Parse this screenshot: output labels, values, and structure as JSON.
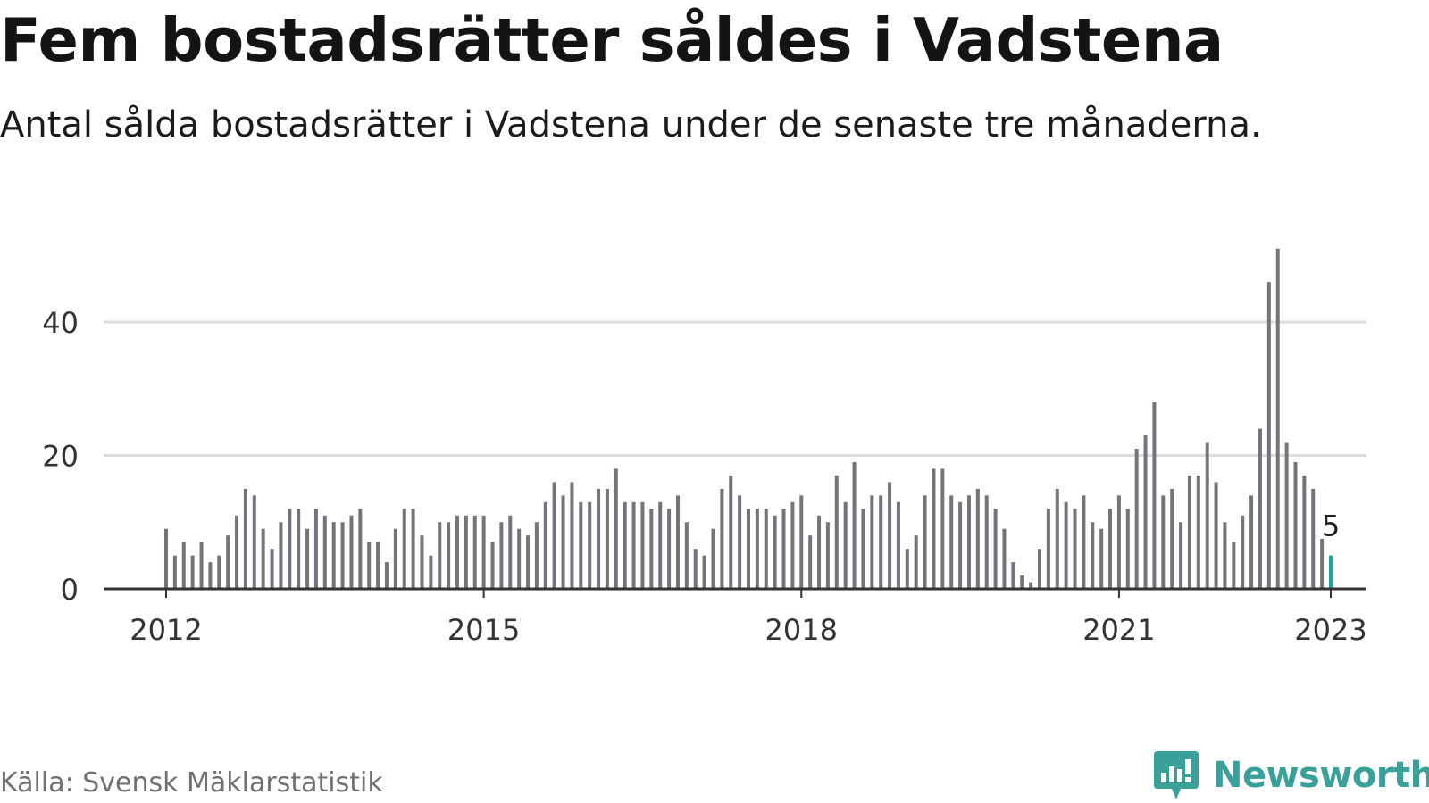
{
  "title": "Fem bostadsrätter såldes i Vadstena",
  "subtitle": "Antal sålda bostadsrätter i Vadstena under de senaste tre månaderna.",
  "source": "Källa: Svensk Mäklarstatistik",
  "brand": {
    "name": "Newsworthy",
    "color": "#3aa19a",
    "icon": "newsworthy-logo-icon"
  },
  "colors": {
    "bar": "#75747a",
    "highlight": "#19a79a",
    "grid": "#dcdcdc",
    "axis": "#333333",
    "text": "#333333"
  },
  "chart_data": {
    "type": "bar",
    "title": "Fem bostadsrätter såldes i Vadstena",
    "subtitle": "Antal sålda bostadsrätter i Vadstena under de senaste tre månaderna.",
    "xlabel": "",
    "ylabel": "",
    "x_start": "2012-01",
    "x_ticks": [
      "2012",
      "2015",
      "2018",
      "2021",
      "2023"
    ],
    "y_ticks": [
      0,
      20,
      40
    ],
    "ylim": [
      0,
      52
    ],
    "grid": true,
    "highlight_last": true,
    "last_value_label": "5",
    "values": [
      9,
      5,
      7,
      5,
      7,
      4,
      5,
      8,
      11,
      15,
      14,
      9,
      6,
      10,
      12,
      12,
      9,
      12,
      11,
      10,
      10,
      11,
      12,
      7,
      7,
      4,
      9,
      12,
      12,
      8,
      5,
      10,
      10,
      11,
      11,
      11,
      11,
      7,
      10,
      11,
      9,
      8,
      10,
      13,
      16,
      14,
      16,
      13,
      13,
      15,
      15,
      18,
      13,
      13,
      13,
      12,
      13,
      12,
      14,
      10,
      6,
      5,
      9,
      15,
      17,
      14,
      12,
      12,
      12,
      11,
      12,
      13,
      14,
      8,
      11,
      10,
      17,
      13,
      19,
      12,
      14,
      14,
      16,
      13,
      6,
      8,
      14,
      18,
      18,
      14,
      13,
      14,
      15,
      14,
      12,
      9,
      4,
      2,
      1,
      6,
      12,
      15,
      13,
      12,
      14,
      10,
      9,
      12,
      14,
      12,
      21,
      23,
      28,
      14,
      15,
      10,
      17,
      17,
      22,
      16,
      10,
      7,
      11,
      14,
      24,
      46,
      51,
      22,
      19,
      17,
      15,
      7.5,
      5
    ]
  }
}
